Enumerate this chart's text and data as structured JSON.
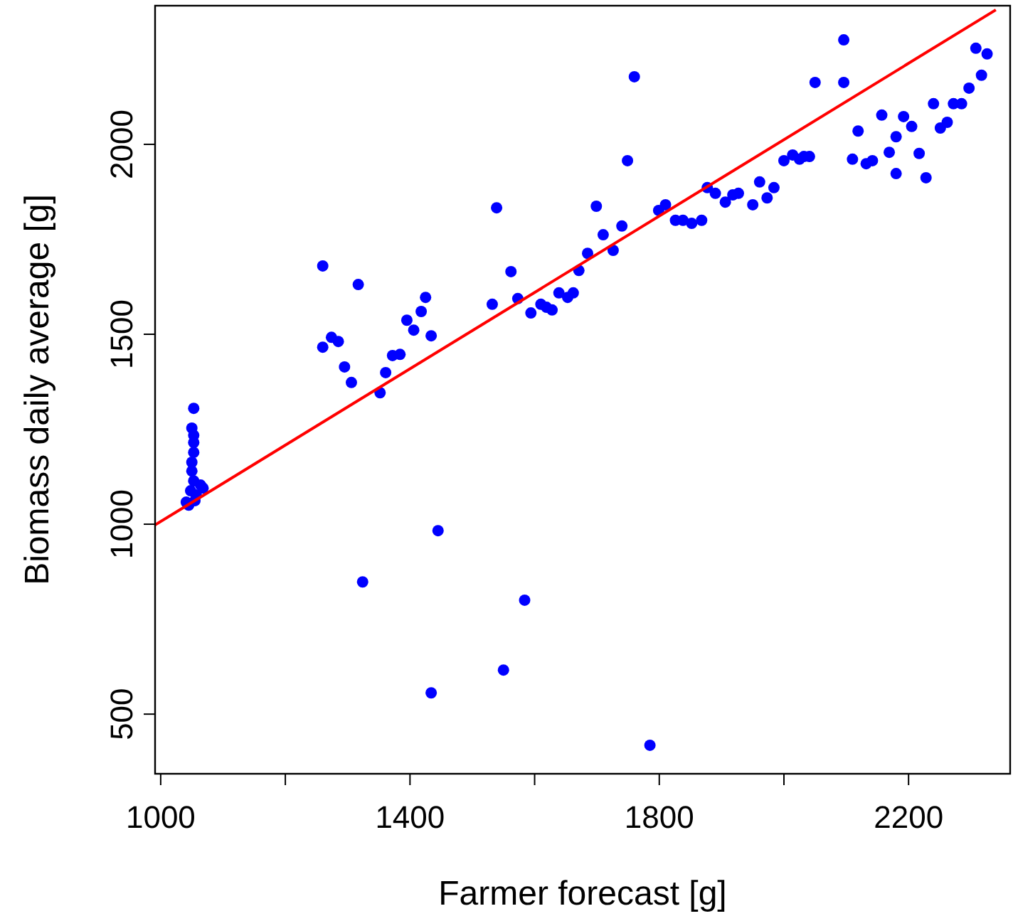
{
  "chart_data": {
    "type": "scatter",
    "xlabel": "Farmer forecast [g]",
    "ylabel": "Biomass daily average [g]",
    "xlim": [
      991,
      2363
    ],
    "ylim": [
      343,
      2365
    ],
    "xticks": [
      1000,
      {
        "value": 1200,
        "label": null
      },
      1400,
      {
        "value": 1600,
        "label": null
      },
      1800,
      {
        "value": 2000,
        "label": null
      },
      2200
    ],
    "yticks": [
      500,
      1000,
      1500,
      2000
    ],
    "grid": false,
    "series": [
      {
        "color": "#0000ff",
        "marker": "circle",
        "x": [
          1053,
          1050,
          1053,
          1053,
          1053,
          1050,
          1050,
          1053,
          1048,
          1064,
          1057,
          1041,
          1068,
          1055,
          1045,
          1260,
          1317,
          1260,
          1274,
          1285,
          1295,
          1306,
          1352,
          1361,
          1372,
          1384,
          1395,
          1406,
          1418,
          1425,
          1434,
          1532,
          1539,
          1562,
          1573,
          1594,
          1610,
          1619,
          1628,
          1639,
          1653,
          1662,
          1671,
          1685,
          1699,
          1710,
          1726,
          1740,
          1749,
          1760,
          1799,
          1810,
          1826,
          1838,
          1852,
          1868,
          1877,
          1890,
          1906,
          1918,
          1927,
          1950,
          1961,
          1973,
          1984,
          2000,
          2014,
          2025,
          2032,
          2041,
          2050,
          2096,
          2096,
          2110,
          2119,
          2132,
          2142,
          2157,
          2169,
          2180,
          2180,
          2192,
          2205,
          2217,
          2228,
          2240,
          2251,
          2262,
          2272,
          2285,
          2297,
          2317,
          2308,
          2326,
          1445,
          1324,
          1584,
          1550,
          1434,
          1785
        ],
        "values": [
          1305,
          1253,
          1234,
          1215,
          1189,
          1163,
          1140,
          1114,
          1088,
          1103,
          1077,
          1058,
          1095,
          1062,
          1050,
          1680,
          1631,
          1466,
          1492,
          1481,
          1414,
          1373,
          1346,
          1399,
          1444,
          1447,
          1537,
          1511,
          1560,
          1597,
          1496,
          1579,
          1833,
          1665,
          1594,
          1556,
          1579,
          1571,
          1564,
          1609,
          1597,
          1609,
          1668,
          1713,
          1837,
          1762,
          1721,
          1785,
          1957,
          2178,
          1826,
          1841,
          1800,
          1800,
          1792,
          1800,
          1886,
          1871,
          1848,
          1867,
          1871,
          1841,
          1901,
          1859,
          1886,
          1957,
          1972,
          1961,
          1968,
          1968,
          2163,
          2275,
          2163,
          1961,
          2035,
          1949,
          1957,
          2077,
          1979,
          2020,
          1923,
          2073,
          2047,
          1976,
          1912,
          2107,
          2043,
          2058,
          2107,
          2107,
          2148,
          2182,
          2253,
          2238,
          983,
          848,
          800,
          616,
          556,
          418
        ]
      },
      {
        "color": "#ff0000",
        "type": "line",
        "x": [
          991,
          2340
        ],
        "values": [
          998,
          2354
        ]
      }
    ]
  }
}
